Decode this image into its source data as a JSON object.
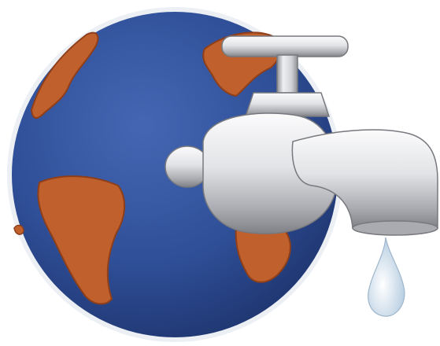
{
  "illustration": {
    "subject": "globe-with-dripping-faucet",
    "colors": {
      "ocean": "#2f4f98",
      "ocean_dark": "#233c7a",
      "land": "#c0602c",
      "land_dark": "#8e3f1a",
      "metal_light": "#f2f2f4",
      "metal_mid": "#c9cace",
      "metal_dark": "#8f9196",
      "water": "#d8e6f2"
    }
  }
}
